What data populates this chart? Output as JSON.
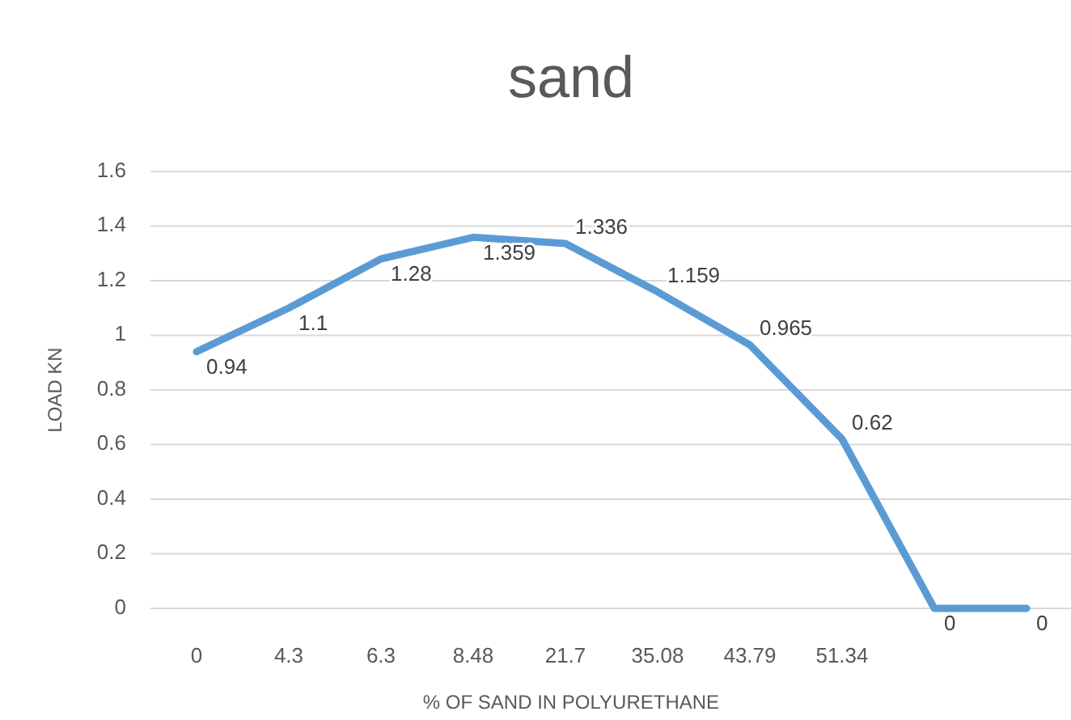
{
  "chart_data": {
    "type": "line",
    "title": "sand",
    "xlabel": "% OF SAND  IN POLYURETHANE",
    "ylabel": "LOAD KN",
    "categories": [
      "0",
      "4.3",
      "6.3",
      "8.48",
      "21.7",
      "35.08",
      "43.79",
      "51.34",
      null,
      null
    ],
    "series": [
      {
        "color": "#5b9bd5",
        "values": [
          0.94,
          1.1,
          1.28,
          1.359,
          1.336,
          1.159,
          0.965,
          0.62,
          0,
          0
        ]
      }
    ],
    "ylim": [
      0,
      1.6
    ],
    "yticks": [
      0,
      0.2,
      0.4,
      0.6,
      0.8,
      1,
      1.2,
      1.4,
      1.6
    ],
    "grid": "y",
    "data_labels": true,
    "marker": "none",
    "line_style": "solid"
  }
}
